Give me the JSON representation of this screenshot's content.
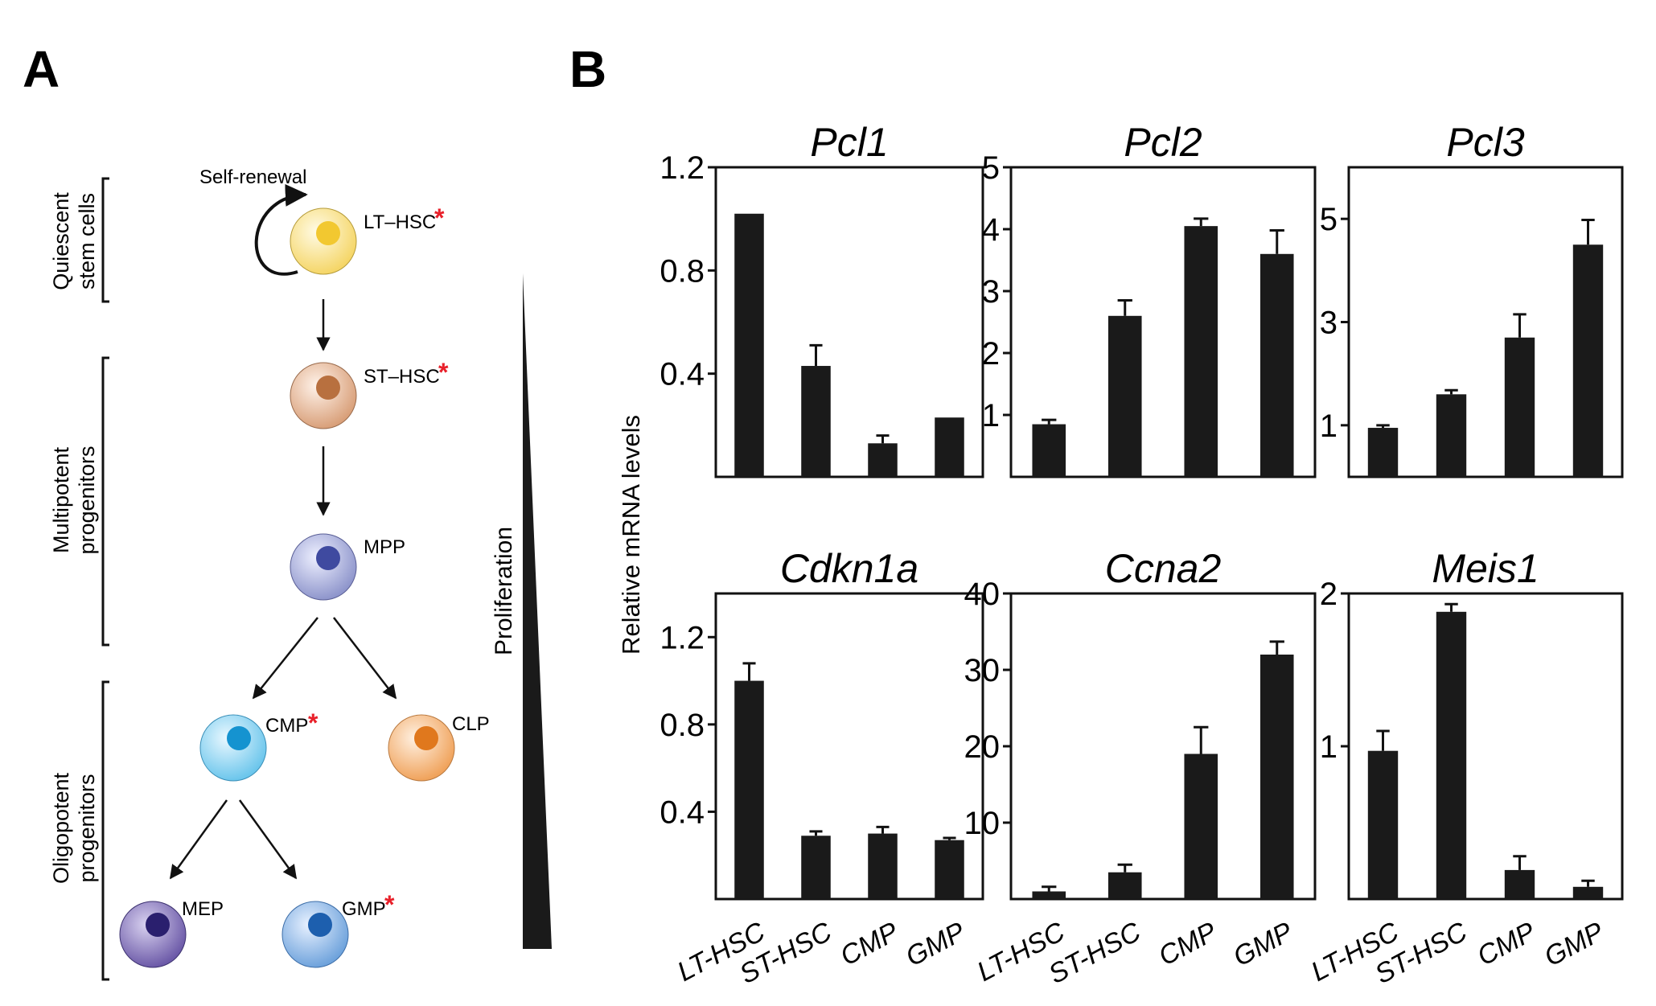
{
  "panels": {
    "a": "A",
    "b": "B"
  },
  "hierarchy": {
    "self_renewal": "Self-renewal",
    "proliferation": "Proliferation",
    "groups": [
      {
        "line1": "Quiescent",
        "line2": "stem cells"
      },
      {
        "line1": "Multipotent",
        "line2": "progenitors"
      },
      {
        "line1": "Oligopotent",
        "line2": "progenitors"
      }
    ],
    "cells": [
      {
        "label": "LT–HSC",
        "starred": true,
        "color": "#f5d668",
        "nucleus": "#f2c830"
      },
      {
        "label": "ST–HSC",
        "starred": true,
        "color": "#d9a07a",
        "nucleus": "#b8703f"
      },
      {
        "label": "MPP",
        "starred": false,
        "color": "#8f96cc",
        "nucleus": "#3f4aa0"
      },
      {
        "label": "CMP",
        "starred": true,
        "color": "#6cc6ec",
        "nucleus": "#1593d0"
      },
      {
        "label": "CLP",
        "starred": false,
        "color": "#f0a35c",
        "nucleus": "#e0781d"
      },
      {
        "label": "MEP",
        "starred": false,
        "color": "#6c5aa8",
        "nucleus": "#2a1f6e"
      },
      {
        "label": "GMP",
        "starred": true,
        "color": "#6fa3dc",
        "nucleus": "#1d5fae"
      }
    ],
    "star_symbol": "*"
  },
  "ylabel": "Relative mRNA levels",
  "chart_data": [
    {
      "type": "bar",
      "title": "Pcl1",
      "categories": [
        "LT-HSC",
        "ST-HSC",
        "CMP",
        "GMP"
      ],
      "values": [
        1.02,
        0.43,
        0.13,
        0.23
      ],
      "errors": [
        0.0,
        0.08,
        0.03,
        0.0
      ],
      "ylim": [
        0,
        1.2
      ],
      "yticks": [
        0.4,
        0.8,
        1.2
      ]
    },
    {
      "type": "bar",
      "title": "Pcl2",
      "categories": [
        "LT-HSC",
        "ST-HSC",
        "CMP",
        "GMP"
      ],
      "values": [
        0.85,
        2.6,
        4.05,
        3.6
      ],
      "errors": [
        0.07,
        0.25,
        0.12,
        0.38
      ],
      "ylim": [
        0,
        5
      ],
      "yticks": [
        1,
        2,
        3,
        4,
        5
      ]
    },
    {
      "type": "bar",
      "title": "Pcl3",
      "categories": [
        "LT-HSC",
        "ST-HSC",
        "CMP",
        "GMP"
      ],
      "values": [
        0.95,
        1.6,
        2.7,
        4.5
      ],
      "errors": [
        0.05,
        0.08,
        0.45,
        0.48
      ],
      "ylim": [
        0,
        6
      ],
      "yticks": [
        1,
        3,
        5
      ]
    },
    {
      "type": "bar",
      "title": "Cdkn1a",
      "categories": [
        "LT-HSC",
        "ST-HSC",
        "CMP",
        "GMP"
      ],
      "values": [
        1.0,
        0.29,
        0.3,
        0.27
      ],
      "errors": [
        0.08,
        0.02,
        0.03,
        0.01
      ],
      "ylim": [
        0,
        1.4
      ],
      "yticks": [
        0.4,
        0.8,
        1.2
      ]
    },
    {
      "type": "bar",
      "title": "Ccna2",
      "categories": [
        "LT-HSC",
        "ST-HSC",
        "CMP",
        "GMP"
      ],
      "values": [
        1.0,
        3.5,
        19.0,
        32.0
      ],
      "errors": [
        0.6,
        1.0,
        3.5,
        1.7
      ],
      "ylim": [
        0,
        40
      ],
      "yticks": [
        10,
        20,
        30,
        40
      ]
    },
    {
      "type": "bar",
      "title": "Meis1",
      "categories": [
        "LT-HSC",
        "ST-HSC",
        "CMP",
        "GMP"
      ],
      "values": [
        0.97,
        1.88,
        0.19,
        0.08
      ],
      "errors": [
        0.13,
        0.05,
        0.09,
        0.04
      ],
      "ylim": [
        0,
        2
      ],
      "yticks": [
        1,
        2
      ]
    }
  ]
}
